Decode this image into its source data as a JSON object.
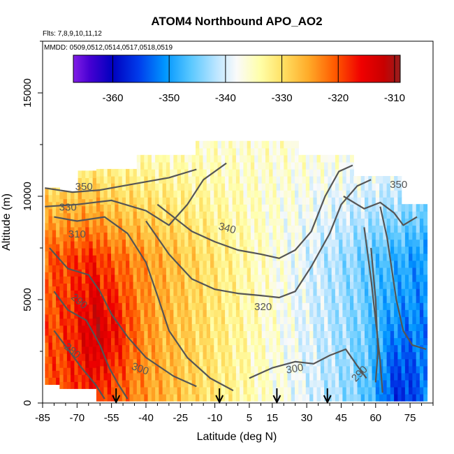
{
  "chart_data": {
    "type": "heatmap",
    "title": "ATOM4 Northbound APO_AO2",
    "flights_note": "Flts: 7,8,9,10,11,12",
    "dates_note": "MMDD: 0509,0512,0514,0517,0518,0519",
    "xlabel": "Latitude (deg N)",
    "ylabel": "Altitude (m)",
    "xlim": [
      -85,
      85
    ],
    "ylim": [
      0,
      17500
    ],
    "x_ticks": [
      -85,
      -70,
      -55,
      -40,
      -25,
      -10,
      5,
      15,
      30,
      45,
      60,
      75
    ],
    "y_ticks": [
      0,
      5000,
      10000,
      15000
    ],
    "colorbar": {
      "range": [
        -367,
        -309
      ],
      "ticks": [
        -360,
        -350,
        -340,
        -330,
        -320,
        -310
      ],
      "placement": "top-inside"
    },
    "contour_labels": [
      "350",
      "330",
      "310",
      "290",
      "280",
      "300",
      "340",
      "320",
      "300",
      "290",
      "350"
    ],
    "profile_arrows_lat": [
      -53,
      -8,
      17,
      39
    ],
    "field_description": "Color-coded APO anomaly: high values (~-310 to -325) south of the equator in the lower troposphere, decreasing to ~-340 to -365 north of 45N",
    "field_samples": [
      {
        "lat": -75,
        "alt": 5000,
        "value": -318
      },
      {
        "lat": -55,
        "alt": 4000,
        "value": -312
      },
      {
        "lat": -40,
        "alt": 6000,
        "value": -325
      },
      {
        "lat": -25,
        "alt": 4000,
        "value": -322
      },
      {
        "lat": -10,
        "alt": 3000,
        "value": -327
      },
      {
        "lat": 5,
        "alt": 2000,
        "value": -335
      },
      {
        "lat": 15,
        "alt": 6000,
        "value": -332
      },
      {
        "lat": 30,
        "alt": 3000,
        "value": -340
      },
      {
        "lat": 45,
        "alt": 4000,
        "value": -348
      },
      {
        "lat": 60,
        "alt": 2000,
        "value": -355
      },
      {
        "lat": 75,
        "alt": 2000,
        "value": -362
      },
      {
        "lat": 50,
        "alt": 10000,
        "value": -335
      }
    ]
  }
}
